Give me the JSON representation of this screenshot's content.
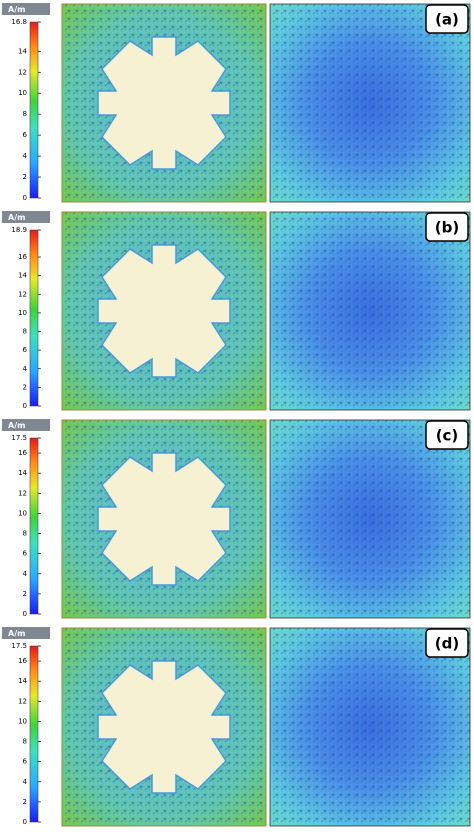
{
  "panels": [
    {
      "label": "(a)",
      "unit": "A/m",
      "ticks": [
        16.8,
        14,
        12,
        10,
        8,
        6,
        4,
        2,
        0
      ]
    },
    {
      "label": "(b)",
      "unit": "A/m",
      "ticks": [
        18.9,
        16,
        14,
        12,
        10,
        8,
        6,
        4,
        2,
        0
      ]
    },
    {
      "label": "(c)",
      "unit": "A/m",
      "ticks": [
        17.5,
        16,
        14,
        12,
        10,
        8,
        6,
        4,
        2,
        0
      ]
    },
    {
      "label": "(d)",
      "unit": "A/m",
      "ticks": [
        17.5,
        16,
        14,
        12,
        10,
        8,
        6,
        4,
        2,
        0
      ]
    }
  ]
}
